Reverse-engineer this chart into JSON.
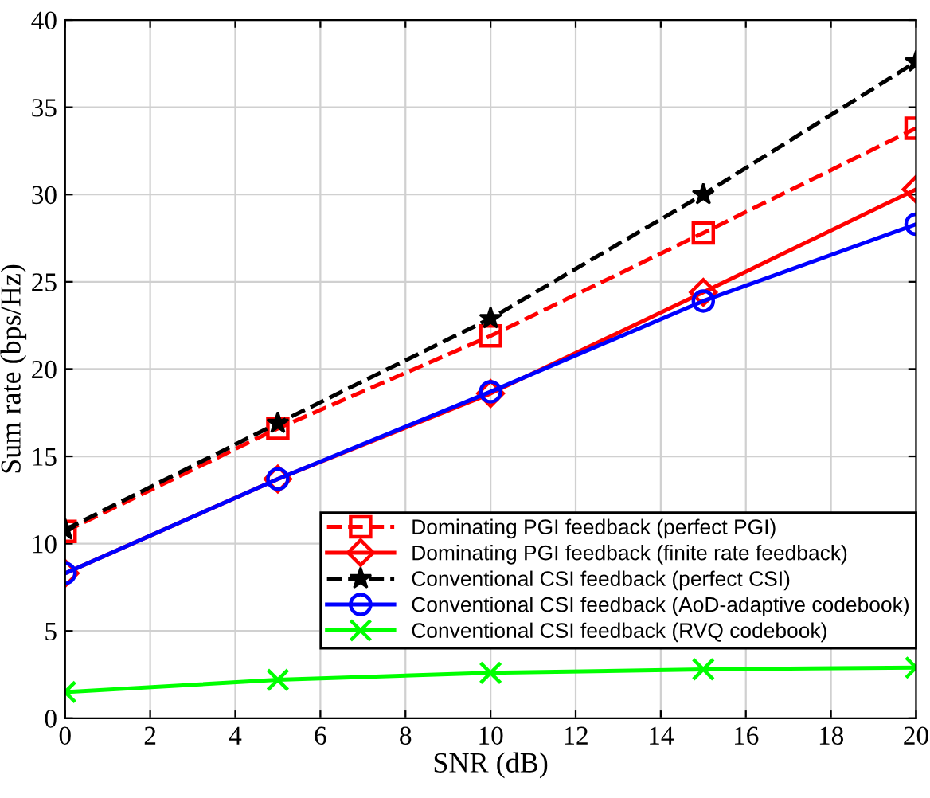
{
  "chart_data": {
    "type": "line",
    "xlabel": "SNR (dB)",
    "ylabel": "Sum rate (bps/Hz)",
    "x": [
      0,
      5,
      10,
      15,
      20
    ],
    "series": [
      {
        "name": "Dominating PGI feedback (perfect PGI)",
        "color": "#ff0000",
        "line_style": "dashed",
        "marker": "square",
        "values": [
          10.7,
          16.6,
          21.9,
          27.8,
          33.8
        ]
      },
      {
        "name": "Dominating PGI feedback (finite rate feedback)",
        "color": "#ff0000",
        "line_style": "solid",
        "marker": "diamond",
        "values": [
          8.3,
          13.7,
          18.6,
          24.4,
          30.3
        ]
      },
      {
        "name": "Conventional CSI feedback (perfect CSI)",
        "color": "#000000",
        "line_style": "dashed",
        "marker": "star",
        "values": [
          10.8,
          16.9,
          22.9,
          30.0,
          37.6
        ]
      },
      {
        "name": "Conventional CSI feedback (AoD-adaptive codebook)",
        "color": "#0000ff",
        "line_style": "solid",
        "marker": "circle",
        "values": [
          8.3,
          13.7,
          18.7,
          23.9,
          28.3
        ]
      },
      {
        "name": "Conventional CSI feedback (RVQ codebook)",
        "color": "#00ff00",
        "line_style": "solid",
        "marker": "cross",
        "values": [
          1.5,
          2.2,
          2.6,
          2.8,
          2.9
        ]
      }
    ],
    "xlim": [
      0,
      20
    ],
    "xticks": [
      0,
      2,
      4,
      6,
      8,
      10,
      12,
      14,
      16,
      18,
      20
    ],
    "ylim": [
      0,
      40
    ],
    "yticks": [
      0,
      5,
      10,
      15,
      20,
      25,
      30,
      35,
      40
    ],
    "grid": true,
    "legend": "bottom right"
  }
}
